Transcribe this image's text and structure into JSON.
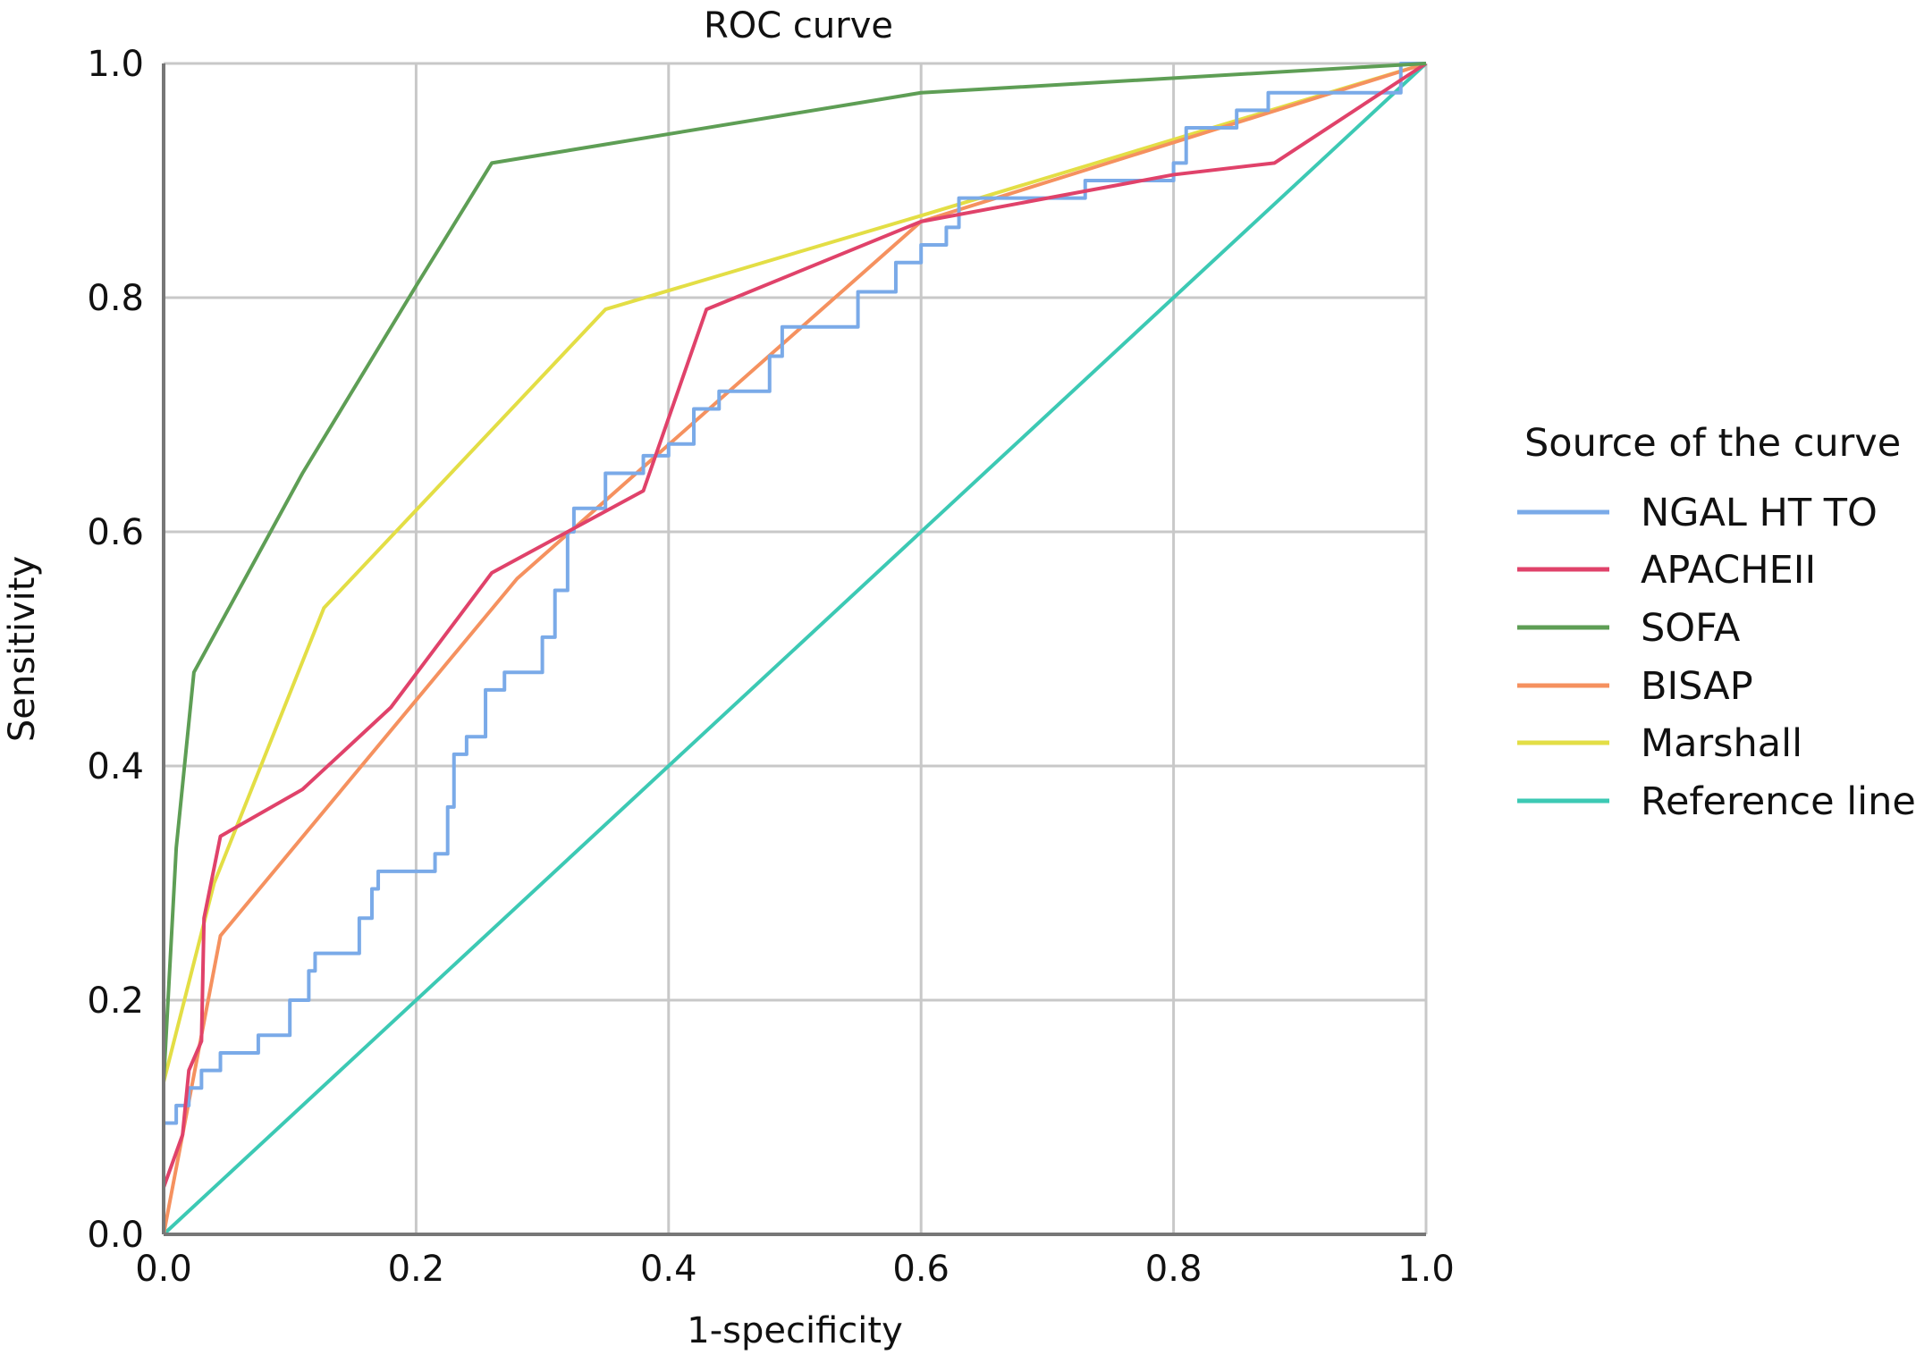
{
  "chart_data": {
    "type": "line",
    "title": "ROC curve",
    "xlabel": "1-specificity",
    "ylabel": "Sensitivity",
    "xlim": [
      0,
      1
    ],
    "ylim": [
      0,
      1
    ],
    "xticks": [
      "0.0",
      "0.2",
      "0.4",
      "0.6",
      "0.8",
      "1.0"
    ],
    "yticks": [
      "0.0",
      "0.2",
      "0.4",
      "0.6",
      "0.8",
      "1.0"
    ],
    "grid": true,
    "legend": {
      "title": "Source of the curve",
      "placement": "right"
    },
    "series": [
      {
        "name": "NGAL HT TO",
        "color": "#7aaae8",
        "step": true,
        "x": [
          0,
          0,
          0.01,
          0.02,
          0.03,
          0.045,
          0.075,
          0.1,
          0.115,
          0.12,
          0.155,
          0.165,
          0.17,
          0.215,
          0.225,
          0.23,
          0.24,
          0.255,
          0.27,
          0.3,
          0.31,
          0.32,
          0.325,
          0.35,
          0.38,
          0.4,
          0.42,
          0.44,
          0.48,
          0.49,
          0.55,
          0.58,
          0.6,
          0.62,
          0.63,
          0.73,
          0.8,
          0.81,
          0.85,
          0.875,
          0.98,
          0.98,
          1
        ],
        "y": [
          0,
          0.095,
          0.11,
          0.125,
          0.14,
          0.155,
          0.17,
          0.2,
          0.225,
          0.24,
          0.27,
          0.295,
          0.31,
          0.325,
          0.365,
          0.41,
          0.425,
          0.465,
          0.48,
          0.51,
          0.55,
          0.6,
          0.62,
          0.65,
          0.665,
          0.675,
          0.705,
          0.72,
          0.75,
          0.775,
          0.805,
          0.83,
          0.845,
          0.86,
          0.885,
          0.9,
          0.915,
          0.945,
          0.96,
          0.975,
          0.975,
          1,
          1
        ]
      },
      {
        "name": "APACHEII",
        "color": "#e0426a",
        "step": false,
        "x": [
          0,
          0,
          0.01,
          0.015,
          0.02,
          0.03,
          0.032,
          0.045,
          0.11,
          0.18,
          0.26,
          0.38,
          0.43,
          0.6,
          0.8,
          0.88,
          1
        ],
        "y": [
          0,
          0.04,
          0.07,
          0.085,
          0.14,
          0.165,
          0.27,
          0.34,
          0.38,
          0.45,
          0.565,
          0.635,
          0.79,
          0.865,
          0.905,
          0.915,
          1
        ]
      },
      {
        "name": "SOFA",
        "color": "#5e9e55",
        "step": false,
        "x": [
          0,
          0,
          0.01,
          0.024,
          0.11,
          0.2,
          0.26,
          0.6,
          1
        ],
        "y": [
          0,
          0.13,
          0.33,
          0.48,
          0.65,
          0.81,
          0.915,
          0.975,
          1
        ]
      },
      {
        "name": "BISAP",
        "color": "#f5915f",
        "step": false,
        "x": [
          0,
          0.045,
          0.28,
          0.6,
          1
        ],
        "y": [
          0,
          0.255,
          0.56,
          0.865,
          1
        ]
      },
      {
        "name": "Marshall",
        "color": "#e3de45",
        "step": false,
        "x": [
          0,
          0,
          0.04,
          0.127,
          0.35,
          0.6,
          1
        ],
        "y": [
          0,
          0.13,
          0.3,
          0.535,
          0.79,
          0.87,
          1
        ]
      },
      {
        "name": "Reference line",
        "color": "#3cc9b4",
        "step": false,
        "x": [
          0,
          1
        ],
        "y": [
          0,
          1
        ]
      }
    ]
  }
}
